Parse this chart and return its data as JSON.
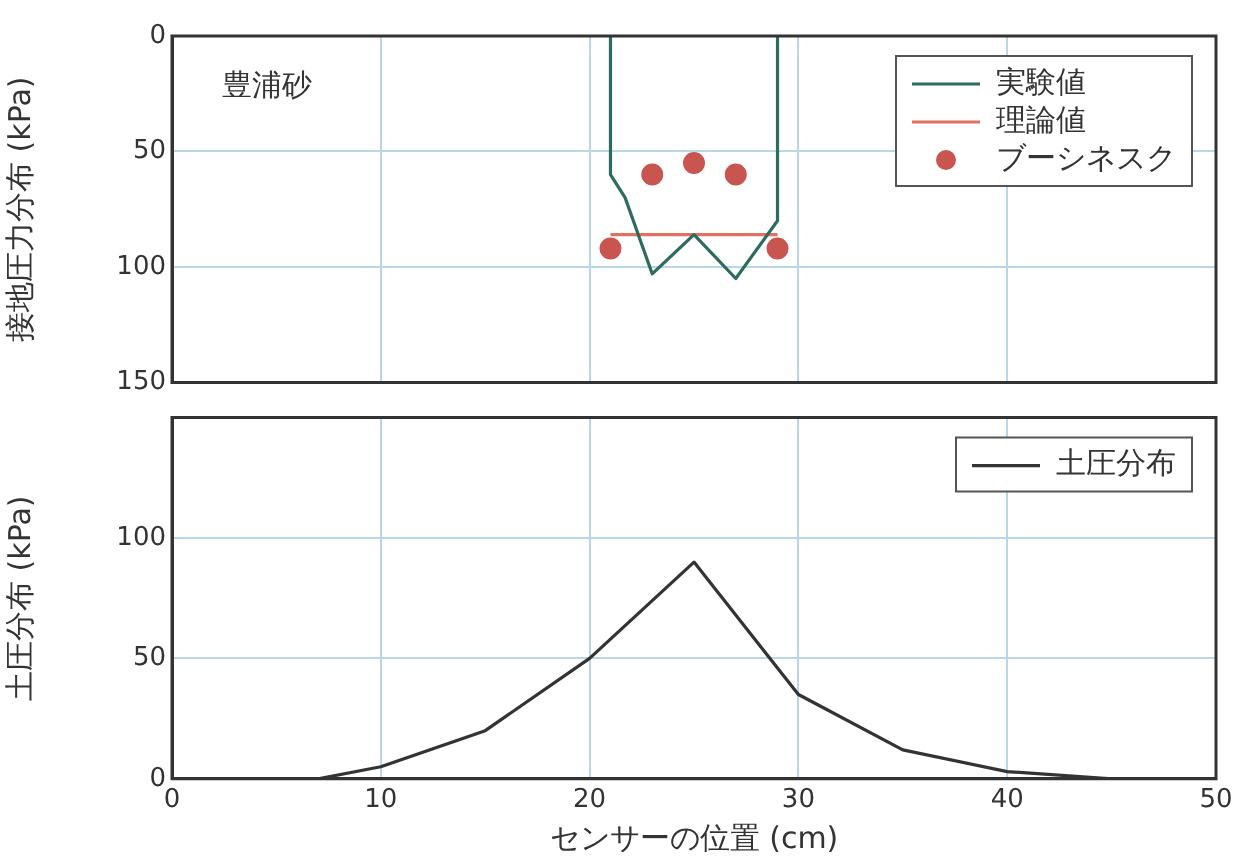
{
  "chart_data": [
    {
      "type": "line",
      "ylabel": "接地圧力分布 (kPa)",
      "xlim": [
        0,
        50
      ],
      "xticks": [
        0,
        10,
        20,
        30,
        40,
        50
      ],
      "ylim": [
        150,
        0
      ],
      "yticks": [
        0,
        50,
        100,
        150
      ],
      "tick_labels": "y",
      "grid": true,
      "legend": "top right",
      "marker": "none",
      "line_style": "solid",
      "annotations": [
        "豊浦砂"
      ],
      "series": [
        {
          "name": "実験値",
          "color": "#2e6b60",
          "x": [
            21,
            21,
            21.7,
            23,
            25,
            27,
            29,
            29
          ],
          "values": [
            0,
            60,
            70,
            103,
            86,
            105,
            80,
            0
          ]
        },
        {
          "name": "理論値",
          "color": "#e07060",
          "x": [
            21,
            29
          ],
          "values": [
            86,
            86
          ]
        },
        {
          "name": "ブーシネスク",
          "type": "scatter",
          "marker": "circle",
          "color": "#c85550",
          "x": [
            21,
            23,
            25,
            27,
            29
          ],
          "values": [
            92,
            60,
            55,
            60,
            92
          ]
        }
      ]
    },
    {
      "type": "line",
      "xlabel": "センサーの位置 (cm)",
      "ylabel": "土圧分布 (kPa)",
      "xlim": [
        0,
        50
      ],
      "xticks": [
        0,
        10,
        20,
        30,
        40,
        50
      ],
      "ylim": [
        0,
        150
      ],
      "yticks": [
        0,
        50,
        100,
        {
          "value": 150,
          "label": null
        }
      ],
      "grid": true,
      "legend": "top right",
      "marker": "none",
      "line_style": "solid",
      "series": [
        {
          "name": "土圧分布",
          "color": "#333333",
          "x": [
            0,
            5,
            7,
            10,
            15,
            20,
            25,
            30,
            35,
            40,
            45
          ],
          "values": [
            0,
            0,
            0,
            5,
            20,
            50,
            90,
            35,
            12,
            3,
            0
          ]
        }
      ]
    }
  ]
}
